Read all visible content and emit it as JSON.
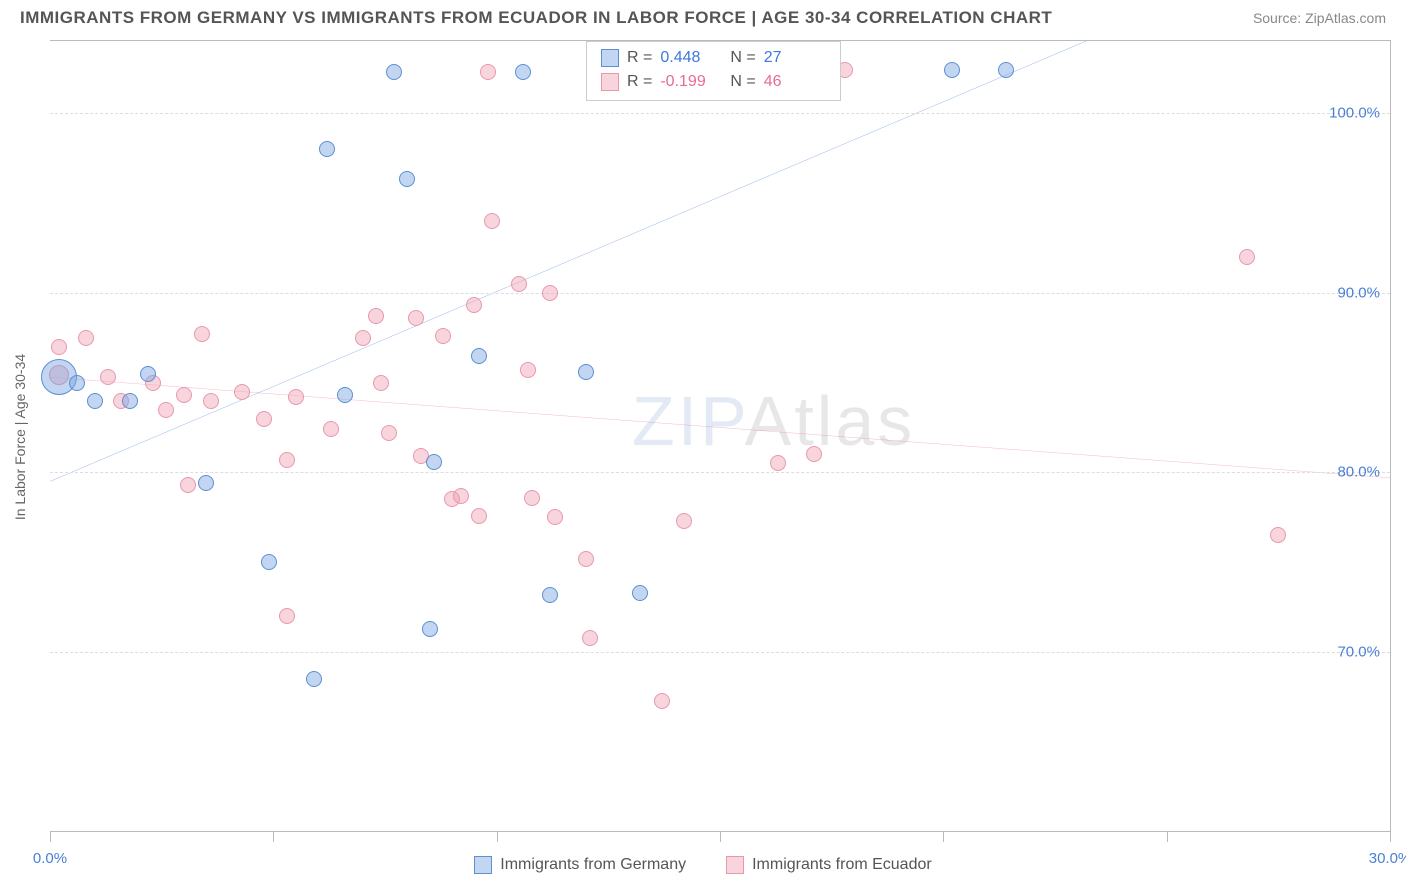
{
  "title": "IMMIGRANTS FROM GERMANY VS IMMIGRANTS FROM ECUADOR IN LABOR FORCE | AGE 30-34 CORRELATION CHART",
  "source": "Source: ZipAtlas.com",
  "ylabel": "In Labor Force | Age 30-34",
  "watermark_a": "ZIP",
  "watermark_b": "Atlas",
  "chart": {
    "type": "scatter-correlation",
    "xlim": [
      0,
      30
    ],
    "ylim": [
      60,
      104
    ],
    "xticks": [
      0,
      5,
      10,
      15,
      20,
      25,
      30
    ],
    "xtick_labels": {
      "0": "0.0%",
      "30": "30.0%"
    },
    "yticks": [
      70,
      80,
      90,
      100
    ],
    "ytick_labels": {
      "70": "70.0%",
      "80": "80.0%",
      "90": "90.0%",
      "100": "100.0%"
    },
    "grid_color": "#dddddd",
    "border_color": "#bbbbbb",
    "background_color": "#ffffff"
  },
  "series": {
    "germany": {
      "label": "Immigrants from Germany",
      "point_fill": "rgba(120, 165, 225, 0.45)",
      "point_stroke": "#5b8fd6",
      "line_color": "#1f63d6",
      "line_width": 2,
      "r_label": "R =",
      "r_value": "0.448",
      "n_label": "N =",
      "n_value": "27",
      "stat_color": "#3b78e0",
      "trend": {
        "x1": 0,
        "y1": 79.5,
        "x2": 23.2,
        "y2": 104
      },
      "points": [
        {
          "x": 0.2,
          "y": 85.3,
          "r": 18
        },
        {
          "x": 0.6,
          "y": 85.0,
          "r": 8
        },
        {
          "x": 1.0,
          "y": 84.0,
          "r": 8
        },
        {
          "x": 1.8,
          "y": 84.0,
          "r": 8
        },
        {
          "x": 2.2,
          "y": 85.5,
          "r": 8
        },
        {
          "x": 3.5,
          "y": 79.4,
          "r": 8
        },
        {
          "x": 4.9,
          "y": 75.0,
          "r": 8
        },
        {
          "x": 5.9,
          "y": 68.5,
          "r": 8
        },
        {
          "x": 6.2,
          "y": 98.0,
          "r": 8
        },
        {
          "x": 6.6,
          "y": 84.3,
          "r": 8
        },
        {
          "x": 7.7,
          "y": 102.3,
          "r": 8
        },
        {
          "x": 8.0,
          "y": 96.3,
          "r": 8
        },
        {
          "x": 8.5,
          "y": 71.3,
          "r": 8
        },
        {
          "x": 8.6,
          "y": 80.6,
          "r": 8
        },
        {
          "x": 9.6,
          "y": 86.5,
          "r": 8
        },
        {
          "x": 10.6,
          "y": 102.3,
          "r": 8
        },
        {
          "x": 11.2,
          "y": 73.2,
          "r": 8
        },
        {
          "x": 12.0,
          "y": 85.6,
          "r": 8
        },
        {
          "x": 13.2,
          "y": 73.3,
          "r": 8
        },
        {
          "x": 14.8,
          "y": 102.4,
          "r": 8
        },
        {
          "x": 16.0,
          "y": 102.4,
          "r": 8
        },
        {
          "x": 20.2,
          "y": 102.4,
          "r": 8
        },
        {
          "x": 21.4,
          "y": 102.4,
          "r": 8
        }
      ]
    },
    "ecuador": {
      "label": "Immigrants from Ecuador",
      "point_fill": "rgba(240, 160, 180, 0.45)",
      "point_stroke": "#e898ae",
      "line_color": "#e86b8f",
      "line_width": 2,
      "r_label": "R =",
      "r_value": "-0.199",
      "n_label": "N =",
      "n_value": "46",
      "stat_color": "#e86b8f",
      "trend": {
        "x1": 0,
        "y1": 85.3,
        "x2": 30,
        "y2": 79.7
      },
      "points": [
        {
          "x": 0.2,
          "y": 85.4,
          "r": 10
        },
        {
          "x": 0.2,
          "y": 87.0,
          "r": 8
        },
        {
          "x": 0.8,
          "y": 87.5,
          "r": 8
        },
        {
          "x": 1.3,
          "y": 85.3,
          "r": 8
        },
        {
          "x": 1.6,
          "y": 84.0,
          "r": 8
        },
        {
          "x": 2.3,
          "y": 85.0,
          "r": 8
        },
        {
          "x": 2.6,
          "y": 83.5,
          "r": 8
        },
        {
          "x": 3.0,
          "y": 84.3,
          "r": 8
        },
        {
          "x": 3.1,
          "y": 79.3,
          "r": 8
        },
        {
          "x": 3.4,
          "y": 87.7,
          "r": 8
        },
        {
          "x": 3.6,
          "y": 84.0,
          "r": 8
        },
        {
          "x": 4.3,
          "y": 84.5,
          "r": 8
        },
        {
          "x": 4.8,
          "y": 83.0,
          "r": 8
        },
        {
          "x": 5.3,
          "y": 72.0,
          "r": 8
        },
        {
          "x": 5.3,
          "y": 80.7,
          "r": 8
        },
        {
          "x": 5.5,
          "y": 84.2,
          "r": 8
        },
        {
          "x": 6.3,
          "y": 82.4,
          "r": 8
        },
        {
          "x": 7.0,
          "y": 87.5,
          "r": 8
        },
        {
          "x": 7.3,
          "y": 88.7,
          "r": 8
        },
        {
          "x": 7.4,
          "y": 85.0,
          "r": 8
        },
        {
          "x": 7.6,
          "y": 82.2,
          "r": 8
        },
        {
          "x": 8.2,
          "y": 88.6,
          "r": 8
        },
        {
          "x": 8.3,
          "y": 80.9,
          "r": 8
        },
        {
          "x": 8.8,
          "y": 87.6,
          "r": 8
        },
        {
          "x": 9.0,
          "y": 78.5,
          "r": 8
        },
        {
          "x": 9.2,
          "y": 78.7,
          "r": 8
        },
        {
          "x": 9.5,
          "y": 89.3,
          "r": 8
        },
        {
          "x": 9.6,
          "y": 77.6,
          "r": 8
        },
        {
          "x": 9.8,
          "y": 102.3,
          "r": 8
        },
        {
          "x": 9.9,
          "y": 94.0,
          "r": 8
        },
        {
          "x": 10.5,
          "y": 90.5,
          "r": 8
        },
        {
          "x": 10.7,
          "y": 85.7,
          "r": 8
        },
        {
          "x": 10.8,
          "y": 78.6,
          "r": 8
        },
        {
          "x": 11.2,
          "y": 90.0,
          "r": 8
        },
        {
          "x": 11.3,
          "y": 77.5,
          "r": 8
        },
        {
          "x": 12.0,
          "y": 75.2,
          "r": 8
        },
        {
          "x": 12.1,
          "y": 70.8,
          "r": 8
        },
        {
          "x": 13.7,
          "y": 67.3,
          "r": 8
        },
        {
          "x": 14.2,
          "y": 77.3,
          "r": 8
        },
        {
          "x": 14.4,
          "y": 102.3,
          "r": 8
        },
        {
          "x": 16.3,
          "y": 80.5,
          "r": 8
        },
        {
          "x": 17.1,
          "y": 81.0,
          "r": 8
        },
        {
          "x": 17.8,
          "y": 102.4,
          "r": 8
        },
        {
          "x": 26.8,
          "y": 92.0,
          "r": 8
        },
        {
          "x": 27.5,
          "y": 76.5,
          "r": 8
        }
      ]
    }
  }
}
